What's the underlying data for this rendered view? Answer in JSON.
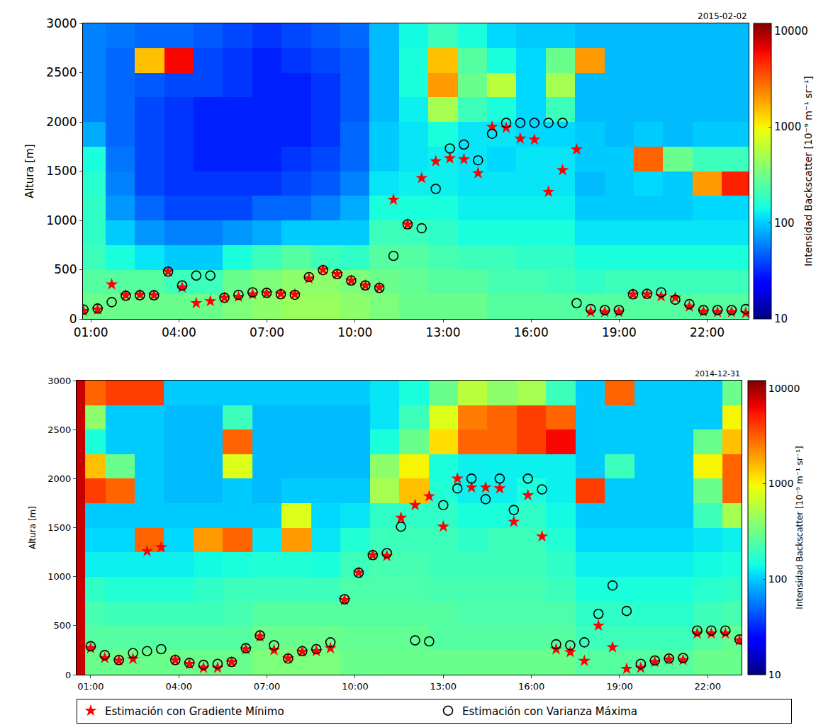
{
  "chart_data": [
    {
      "type": "heatmap_scatter",
      "title": "2015-02-02",
      "y_label": "Altura [m]",
      "legend": "bottom",
      "xlim": [
        0.73,
        23.41
      ],
      "xticks": [
        {
          "value": 1,
          "label": "01:00"
        },
        {
          "value": 4,
          "label": "04:00"
        },
        {
          "value": 7,
          "label": "07:00"
        },
        {
          "value": 10,
          "label": "10:00"
        },
        {
          "value": 13,
          "label": "13:00"
        },
        {
          "value": 16,
          "label": "16:00"
        },
        {
          "value": 19,
          "label": "19:00"
        },
        {
          "value": 22,
          "label": "22:00"
        }
      ],
      "ylim": [
        0,
        3000
      ],
      "yticks": [
        0,
        500,
        1000,
        1500,
        2000,
        2500,
        3000
      ],
      "colorbar": {
        "label": "Intensidad Backscatter [10⁻⁹ m⁻¹ sr⁻¹]",
        "range": [
          10,
          12000
        ],
        "ticks": [
          10,
          100,
          1000,
          10000
        ],
        "log": true
      },
      "heatmap": {
        "x": [
          1,
          2,
          3,
          4,
          5,
          6,
          7,
          8,
          9,
          10,
          11,
          12,
          13,
          14,
          15,
          16,
          17,
          18,
          19,
          20,
          21,
          22,
          23
        ],
        "y": [
          125,
          375,
          625,
          875,
          1125,
          1375,
          1625,
          1875,
          2125,
          2375,
          2625,
          2875
        ],
        "z": [
          [
            300,
            300,
            300,
            300,
            300,
            350,
            400,
            450,
            450,
            400,
            350,
            300,
            300,
            300,
            250,
            250,
            250,
            250,
            250,
            250,
            250,
            250,
            250
          ],
          [
            250,
            250,
            250,
            200,
            200,
            300,
            350,
            400,
            400,
            350,
            300,
            280,
            250,
            250,
            220,
            220,
            200,
            180,
            200,
            200,
            200,
            200,
            200
          ],
          [
            200,
            150,
            120,
            100,
            100,
            150,
            200,
            250,
            200,
            180,
            250,
            250,
            220,
            200,
            200,
            180,
            180,
            150,
            150,
            150,
            150,
            150,
            150
          ],
          [
            180,
            100,
            70,
            60,
            60,
            70,
            80,
            100,
            100,
            100,
            200,
            200,
            180,
            150,
            150,
            150,
            150,
            120,
            120,
            120,
            120,
            120,
            120
          ],
          [
            180,
            70,
            50,
            40,
            40,
            40,
            50,
            50,
            60,
            80,
            150,
            150,
            150,
            130,
            130,
            130,
            130,
            100,
            100,
            100,
            100,
            110,
            110
          ],
          [
            170,
            60,
            40,
            35,
            35,
            35,
            35,
            40,
            45,
            60,
            120,
            130,
            130,
            120,
            120,
            120,
            120,
            90,
            100,
            110,
            100,
            2000,
            5000
          ],
          [
            150,
            55,
            40,
            35,
            30,
            30,
            30,
            35,
            40,
            50,
            100,
            120,
            130,
            120,
            110,
            120,
            120,
            100,
            100,
            3000,
            300,
            200,
            200
          ],
          [
            80,
            50,
            40,
            35,
            30,
            30,
            30,
            30,
            35,
            50,
            100,
            120,
            150,
            120,
            120,
            110,
            110,
            100,
            90,
            100,
            90,
            100,
            100
          ],
          [
            60,
            50,
            40,
            35,
            30,
            30,
            30,
            30,
            35,
            45,
            90,
            130,
            500,
            200,
            150,
            110,
            200,
            90,
            90,
            90,
            90,
            90,
            90
          ],
          [
            60,
            50,
            45,
            40,
            40,
            35,
            30,
            30,
            35,
            45,
            90,
            150,
            2000,
            300,
            600,
            110,
            500,
            90,
            90,
            90,
            90,
            90,
            90
          ],
          [
            60,
            50,
            1500,
            6000,
            40,
            35,
            30,
            35,
            40,
            45,
            90,
            150,
            1500,
            250,
            150,
            110,
            300,
            2000,
            90,
            90,
            90,
            90,
            90
          ],
          [
            60,
            55,
            50,
            50,
            45,
            40,
            35,
            40,
            45,
            50,
            90,
            140,
            200,
            150,
            110,
            100,
            100,
            90,
            90,
            90,
            90,
            90,
            90
          ]
        ]
      },
      "x": [
        0.75,
        1.23,
        1.71,
        2.19,
        2.67,
        3.15,
        3.63,
        4.11,
        4.59,
        5.07,
        5.55,
        6.03,
        6.51,
        6.99,
        7.47,
        7.95,
        8.43,
        8.91,
        9.39,
        9.87,
        10.35,
        10.83,
        11.31,
        11.79,
        12.27,
        12.75,
        13.23,
        13.71,
        14.19,
        14.67,
        15.15,
        15.63,
        16.11,
        16.59,
        17.07,
        17.55,
        18.03,
        18.51,
        18.99,
        19.47,
        19.95,
        20.43,
        20.91,
        21.39,
        21.87,
        22.35,
        22.83,
        23.31
      ],
      "series": [
        {
          "name": "Estimación con Gradiente Mínimo",
          "color": "#ff0000",
          "marker": "star",
          "values": [
            80,
            95,
            350,
            240,
            245,
            240,
            480,
            320,
            160,
            180,
            215,
            225,
            250,
            260,
            255,
            250,
            410,
            500,
            455,
            390,
            340,
            320,
            1210,
            960,
            1430,
            1600,
            1630,
            1620,
            1480,
            1950,
            1940,
            1830,
            1820,
            1290,
            1510,
            1720,
            70,
            70,
            70,
            250,
            250,
            230,
            215,
            125,
            75,
            70,
            70,
            60
          ]
        },
        {
          "name": "Estimación con Varianza Máxima",
          "color": "#000000",
          "marker": "circle-open",
          "values": [
            95,
            105,
            170,
            235,
            240,
            240,
            480,
            340,
            440,
            440,
            215,
            245,
            270,
            265,
            250,
            245,
            425,
            495,
            455,
            390,
            340,
            315,
            640,
            960,
            920,
            1320,
            1730,
            1770,
            1610,
            1880,
            1990,
            1990,
            1990,
            1990,
            1990,
            160,
            100,
            90,
            90,
            250,
            255,
            270,
            195,
            150,
            90,
            90,
            90,
            100
          ]
        }
      ]
    },
    {
      "type": "heatmap_scatter",
      "title": "2014-12-31",
      "y_label": "Altura [m]",
      "legend": "bottom",
      "xlim": [
        0.52,
        23.15
      ],
      "xticks": [
        {
          "value": 1,
          "label": "01:00"
        },
        {
          "value": 4,
          "label": "04:00"
        },
        {
          "value": 7,
          "label": "07:00"
        },
        {
          "value": 10,
          "label": "10:00"
        },
        {
          "value": 13,
          "label": "13:00"
        },
        {
          "value": 16,
          "label": "16:00"
        },
        {
          "value": 19,
          "label": "19:00"
        },
        {
          "value": 22,
          "label": "22:00"
        }
      ],
      "ylim": [
        0,
        3000
      ],
      "yticks": [
        0,
        500,
        1000,
        1500,
        2000,
        2500,
        3000
      ],
      "colorbar": {
        "label": "Intensidad Backscatter [10⁻⁹ m⁻¹ sr⁻¹]",
        "range": [
          10,
          12000
        ],
        "ticks": [
          10,
          100,
          1000,
          10000
        ],
        "log": true
      },
      "heatmap": {
        "x": [
          0.6,
          1,
          2,
          3,
          4,
          5,
          6,
          7,
          8,
          9,
          10,
          11,
          12,
          13,
          14,
          15,
          16,
          17,
          18,
          19,
          20,
          21,
          22,
          23
        ],
        "y": [
          125,
          375,
          625,
          875,
          1125,
          1375,
          1625,
          1875,
          2125,
          2375,
          2625,
          2875
        ],
        "z": [
          [
            8000,
            300,
            300,
            300,
            300,
            300,
            300,
            350,
            350,
            350,
            300,
            300,
            300,
            300,
            300,
            300,
            300,
            300,
            250,
            250,
            250,
            250,
            300,
            300
          ],
          [
            8000,
            250,
            250,
            250,
            250,
            250,
            250,
            300,
            300,
            300,
            280,
            280,
            280,
            250,
            250,
            250,
            250,
            250,
            200,
            200,
            200,
            200,
            250,
            280
          ],
          [
            8000,
            220,
            200,
            200,
            200,
            200,
            220,
            250,
            250,
            250,
            250,
            250,
            250,
            250,
            230,
            230,
            230,
            230,
            180,
            180,
            170,
            170,
            200,
            220
          ],
          [
            8000,
            180,
            160,
            160,
            160,
            180,
            200,
            200,
            200,
            200,
            230,
            230,
            230,
            220,
            220,
            220,
            220,
            200,
            150,
            150,
            150,
            150,
            170,
            180
          ],
          [
            8000,
            130,
            130,
            130,
            130,
            140,
            150,
            160,
            160,
            150,
            200,
            220,
            220,
            200,
            200,
            200,
            200,
            180,
            130,
            130,
            130,
            130,
            140,
            150
          ],
          [
            8000,
            110,
            110,
            3000,
            110,
            2000,
            3000,
            120,
            2000,
            120,
            160,
            200,
            200,
            200,
            180,
            200,
            200,
            160,
            110,
            110,
            110,
            110,
            120,
            130
          ],
          [
            8000,
            100,
            100,
            100,
            100,
            100,
            100,
            100,
            800,
            110,
            120,
            180,
            180,
            180,
            150,
            150,
            180,
            140,
            100,
            100,
            100,
            100,
            200,
            500
          ],
          [
            8000,
            4000,
            3000,
            100,
            90,
            90,
            100,
            90,
            100,
            100,
            100,
            500,
            1500,
            160,
            130,
            130,
            150,
            130,
            4000,
            100,
            100,
            100,
            300,
            3000
          ],
          [
            8000,
            1500,
            300,
            100,
            90,
            90,
            800,
            90,
            90,
            90,
            90,
            400,
            1000,
            150,
            130,
            130,
            130,
            130,
            100,
            200,
            100,
            100,
            1000,
            3000
          ],
          [
            8000,
            150,
            100,
            100,
            90,
            90,
            3000,
            90,
            90,
            90,
            90,
            150,
            300,
            1200,
            3000,
            3000,
            4000,
            6000,
            100,
            100,
            100,
            100,
            300,
            1500
          ],
          [
            8000,
            400,
            100,
            100,
            90,
            90,
            200,
            90,
            90,
            90,
            90,
            120,
            200,
            800,
            2500,
            3000,
            4000,
            3000,
            100,
            100,
            100,
            100,
            100,
            1000
          ],
          [
            8000,
            3000,
            4000,
            4000,
            100,
            100,
            100,
            100,
            100,
            100,
            100,
            120,
            150,
            300,
            600,
            400,
            500,
            200,
            100,
            3000,
            100,
            100,
            100,
            300
          ]
        ]
      },
      "x": [
        1.0,
        1.48,
        1.96,
        2.44,
        2.92,
        3.4,
        3.88,
        4.36,
        4.84,
        5.32,
        5.8,
        6.28,
        6.76,
        7.24,
        7.72,
        8.2,
        8.68,
        9.16,
        9.64,
        10.12,
        10.6,
        11.08,
        11.56,
        12.04,
        12.52,
        13.0,
        13.48,
        13.96,
        14.44,
        14.92,
        15.4,
        15.88,
        16.36,
        16.84,
        17.32,
        17.8,
        18.28,
        18.76,
        19.24,
        19.72,
        20.2,
        20.68,
        21.16,
        21.64,
        22.12,
        22.6,
        23.08
      ],
      "series": [
        {
          "name": "Estimación con Gradiente Mínimo",
          "color": "#ff0000",
          "marker": "star",
          "values": [
            270,
            170,
            145,
            160,
            1260,
            1300,
            150,
            110,
            70,
            70,
            130,
            260,
            390,
            250,
            165,
            235,
            240,
            270,
            760,
            1040,
            1220,
            1210,
            1600,
            1730,
            1820,
            1510,
            2000,
            1910,
            1910,
            1900,
            1560,
            1830,
            1410,
            260,
            230,
            140,
            500,
            280,
            60,
            70,
            130,
            155,
            150,
            420,
            420,
            420,
            350
          ]
        },
        {
          "name": "Estimación con Varianza Máxima",
          "color": "#000000",
          "marker": "circle-open",
          "values": [
            290,
            200,
            150,
            220,
            240,
            260,
            150,
            120,
            100,
            110,
            130,
            270,
            400,
            300,
            165,
            240,
            260,
            330,
            770,
            1040,
            1220,
            1240,
            1510,
            350,
            340,
            1730,
            1900,
            2000,
            1790,
            2000,
            1680,
            2000,
            1890,
            310,
            300,
            330,
            620,
            910,
            650,
            110,
            145,
            165,
            170,
            450,
            450,
            450,
            360
          ]
        }
      ]
    }
  ]
}
